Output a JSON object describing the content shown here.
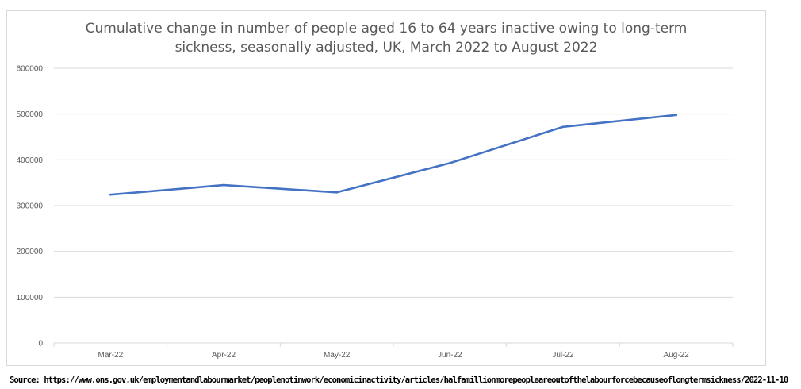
{
  "chart_data": {
    "type": "line",
    "title_lines": [
      "Cumulative change in number of people aged 16 to 64 years inactive owing to long-term",
      "sickness, seasonally adjusted, UK, March 2022 to August 2022"
    ],
    "categories": [
      "Mar-22",
      "Apr-22",
      "May-22",
      "Jun-22",
      "Jul-22",
      "Aug-22"
    ],
    "series": [
      {
        "name": "Cumulative change",
        "values": [
          324000,
          345000,
          329000,
          393000,
          472000,
          498000
        ]
      }
    ],
    "y_ticks": [
      "0",
      "100000",
      "200000",
      "300000",
      "400000",
      "500000",
      "600000"
    ],
    "ylim": [
      0,
      600000
    ],
    "y_step": 100000,
    "grid": true,
    "line_color": "#4472c4",
    "grid_color": "#d9d9d9"
  },
  "source": "Source: https://www.ons.gov.uk/employmentandlabourmarket/peoplenotinwork/economicinactivity/articles/halfamillionmorepeopleareoutofthelabourforcebecauseoflongtermsickness/2022-11-10"
}
